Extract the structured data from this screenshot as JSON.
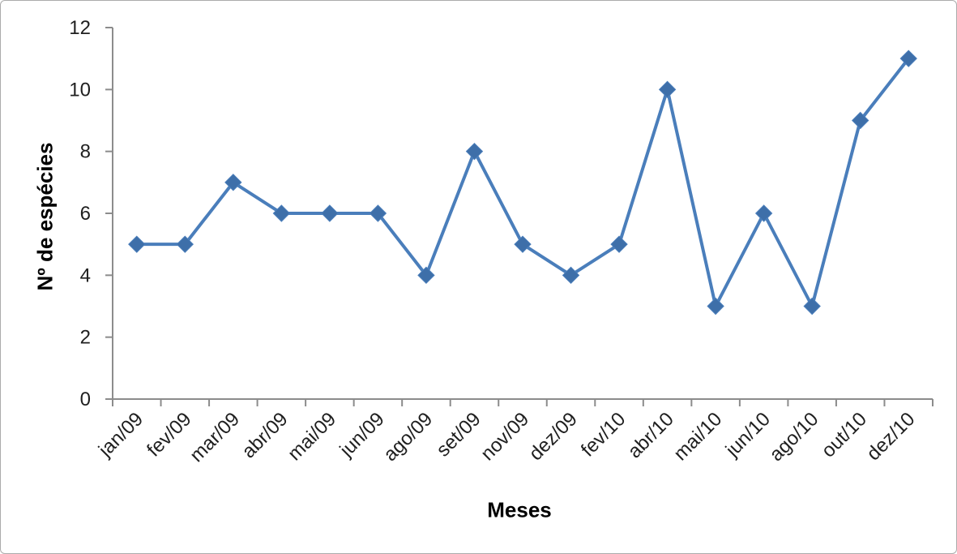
{
  "frame": {
    "background": "#ffffff",
    "border_color": "#ababab"
  },
  "chart_data": {
    "type": "line",
    "title": "",
    "xlabel": "Meses",
    "ylabel": "Nº de espécies",
    "categories": [
      "jan/09",
      "fev/09",
      "mar/09",
      "abr/09",
      "mai/09",
      "jun/09",
      "ago/09",
      "set/09",
      "nov/09",
      "dez/09",
      "fev/10",
      "abr/10",
      "mai/10",
      "jun/10",
      "ago/10",
      "out/10",
      "dez/10"
    ],
    "values": [
      5,
      5,
      7,
      6,
      6,
      6,
      4,
      8,
      5,
      4,
      5,
      10,
      3,
      6,
      3,
      9,
      11
    ],
    "ylim": [
      0,
      12
    ],
    "yticks": [
      0,
      2,
      4,
      6,
      8,
      10,
      12
    ],
    "grid": false,
    "legend": "none",
    "marker": "diamond",
    "x_tick_rotation": -45,
    "colors": {
      "series": "#4A7EBB",
      "marker_fill": "#3E6FA9",
      "axis": "#8C8C8C",
      "tick_label": "#1F1F1F",
      "axis_title": "#000000"
    }
  }
}
